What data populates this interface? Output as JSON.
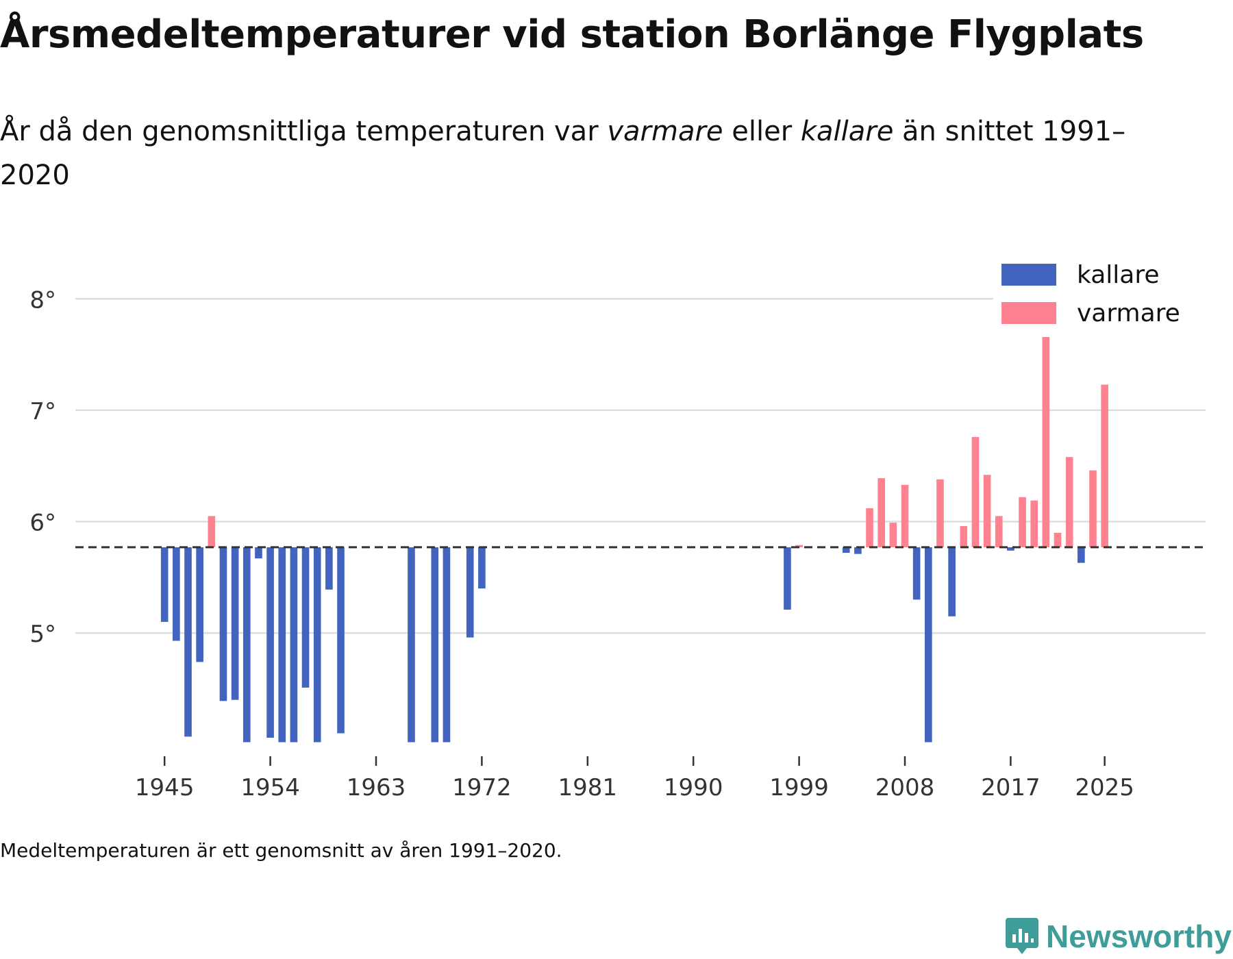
{
  "title": "Årsmedeltemperaturer vid station Borlänge Flygplats",
  "subtitle": {
    "prefix": "År då den genomsnittliga temperaturen var ",
    "warm_word": "varmare",
    "middle": " eller ",
    "cold_word": "kallare",
    "suffix": " än snittet 1991–2020"
  },
  "footnote": "Medeltemperaturen är ett genomsnitt av åren 1991–2020.",
  "brand": {
    "name": "Newsworthy",
    "icon": "newsworthy-logo-icon",
    "color": "#3e9d98"
  },
  "chart_data": {
    "type": "bar",
    "baseline": 5.77,
    "baseline_style": "dashed",
    "ylim": [
      3.98,
      8.1
    ],
    "yticks": [
      5,
      6,
      7,
      8
    ],
    "ytick_labels": [
      "5°",
      "6°",
      "7°",
      "8°"
    ],
    "xlim": [
      1941.2,
      2029.8
    ],
    "xticks": [
      1945,
      1954,
      1963,
      1972,
      1981,
      1990,
      1999,
      2008,
      2017,
      2025
    ],
    "xtick_labels": [
      "1945",
      "1954",
      "1963",
      "1972",
      "1981",
      "1990",
      "1999",
      "2008",
      "2017",
      "2025"
    ],
    "grid": true,
    "colors": {
      "kallare": "#4263be",
      "varmare": "#ff8290",
      "grid": "#dddddd",
      "baseline": "#333333"
    },
    "legend": {
      "position": "top-right",
      "entries": [
        {
          "label": "kallare",
          "color": "#4263be"
        },
        {
          "label": "varmare",
          "color": "#ff8290"
        }
      ]
    },
    "x": [
      1945,
      1946,
      1947,
      1948,
      1949,
      1950,
      1951,
      1952,
      1953,
      1954,
      1955,
      1956,
      1957,
      1958,
      1959,
      1960,
      1966,
      1968,
      1969,
      1971,
      1972,
      1998,
      1999,
      2003,
      2004,
      2005,
      2006,
      2007,
      2008,
      2009,
      2010,
      2011,
      2012,
      2013,
      2014,
      2015,
      2016,
      2017,
      2018,
      2019,
      2020,
      2021,
      2022,
      2023,
      2024,
      2025
    ],
    "values": [
      5.1,
      4.93,
      4.07,
      4.74,
      6.05,
      4.39,
      4.4,
      4.02,
      5.67,
      4.06,
      4.02,
      4.02,
      4.51,
      4.02,
      5.39,
      4.1,
      4.02,
      4.02,
      4.02,
      4.96,
      5.4,
      5.21,
      5.79,
      5.72,
      5.71,
      6.12,
      6.39,
      5.99,
      6.33,
      5.3,
      4.02,
      6.38,
      5.15,
      5.96,
      6.76,
      6.42,
      6.05,
      5.74,
      6.22,
      6.19,
      7.66,
      5.9,
      6.58,
      5.63,
      6.46,
      7.23
    ]
  }
}
